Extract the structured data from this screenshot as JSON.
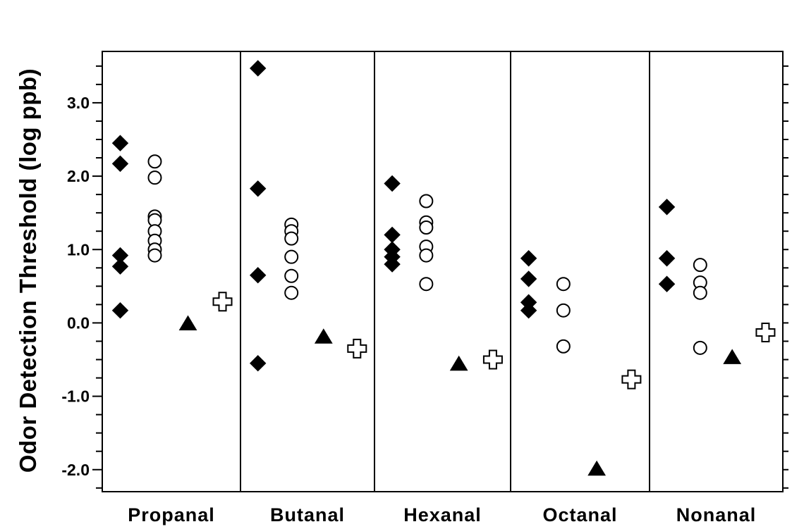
{
  "chart_data": {
    "type": "scatter",
    "ylabel": "Odor Detection Threshold (log ppb)",
    "xlabel": "",
    "ylim": [
      -2.3,
      3.7
    ],
    "yticks": [
      {
        "value": 3.0,
        "label": "3.0"
      },
      {
        "value": 2.0,
        "label": "2.0"
      },
      {
        "value": 1.0,
        "label": "1.0"
      },
      {
        "value": 0.0,
        "label": "0.0"
      },
      {
        "value": -1.0,
        "label": "-1.0"
      },
      {
        "value": -2.0,
        "label": "-2.0"
      }
    ],
    "minor_tick_step": 0.25,
    "grid": false,
    "categories": [
      "Propanal",
      "Butanal",
      "Hexanal",
      "Octanal",
      "Nonanal"
    ],
    "series": [
      {
        "marker": "filled-diamond",
        "color": "#000000",
        "values": [
          [
            2.45,
            2.17,
            0.92,
            0.77,
            0.17
          ],
          [
            3.47,
            1.83,
            0.65,
            -0.55
          ],
          [
            1.9,
            1.2,
            1.0,
            0.9,
            0.8
          ],
          [
            0.88,
            0.6,
            0.28,
            0.17
          ],
          [
            1.58,
            0.88,
            0.53
          ]
        ]
      },
      {
        "marker": "open-circle",
        "color": "#000000",
        "values": [
          [
            2.2,
            1.98,
            1.45,
            1.4,
            1.25,
            1.12,
            1.0,
            0.92
          ],
          [
            1.34,
            1.25,
            1.15,
            0.9,
            0.64,
            0.41
          ],
          [
            1.66,
            1.37,
            1.3,
            1.04,
            0.92,
            0.53
          ],
          [
            0.53,
            0.17,
            -0.32
          ],
          [
            0.79,
            0.55,
            0.41,
            -0.34
          ]
        ]
      },
      {
        "marker": "filled-triangle",
        "color": "#000000",
        "values": [
          [
            -0.01
          ],
          [
            -0.19
          ],
          [
            -0.56
          ],
          [
            -1.99
          ],
          [
            -0.47
          ]
        ]
      },
      {
        "marker": "open-cross",
        "color": "#000000",
        "values": [
          [
            0.29
          ],
          [
            -0.35
          ],
          [
            -0.5
          ],
          [
            -0.77
          ],
          [
            -0.13
          ]
        ]
      }
    ]
  }
}
